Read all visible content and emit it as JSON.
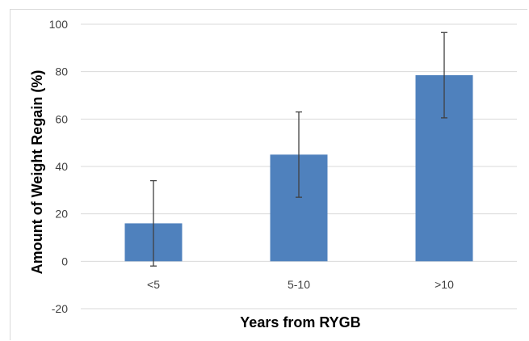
{
  "chart_data": {
    "type": "bar",
    "title": "",
    "xlabel": "Years from RYGB",
    "ylabel": "Amount of Weight Regain (%)",
    "categories": [
      "<5",
      "5-10",
      ">10"
    ],
    "values": [
      16,
      45,
      78.5
    ],
    "error_low": [
      -2,
      27,
      60.5
    ],
    "error_high": [
      34,
      63,
      96.5
    ],
    "ylim": [
      -20,
      100
    ],
    "yticks": [
      -20,
      0,
      20,
      40,
      60,
      80,
      100
    ],
    "grid": true,
    "legend": "none",
    "colors": {
      "bar": "#4f81bd",
      "error_bar": "#404040",
      "grid": "#d9d9d9"
    }
  }
}
